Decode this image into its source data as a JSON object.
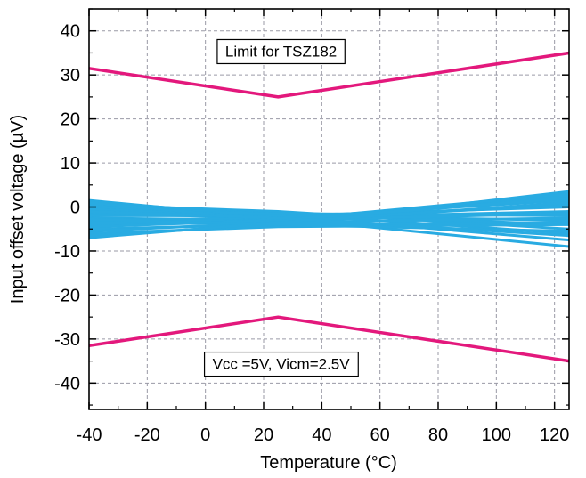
{
  "chart_data": {
    "type": "line",
    "title": "",
    "xlabel": "Temperature (°C)",
    "ylabel": "Input offset voltage (µV)",
    "xlim": [
      -40,
      125
    ],
    "ylim": [
      -46,
      45
    ],
    "x_ticks": [
      -40,
      -20,
      0,
      20,
      40,
      60,
      80,
      100,
      120
    ],
    "y_ticks": [
      40,
      30,
      20,
      10,
      0,
      -10,
      -20,
      -30,
      -40
    ],
    "grid": true,
    "legend": "none",
    "limit_color": "#e3187c",
    "sample_color": "#29abe2",
    "annotations": [
      {
        "text": "Limit for TSZ182",
        "x": 26,
        "y": 35.4
      },
      {
        "text": "Vcc =5V, Vicm=2.5V",
        "x": 26,
        "y": -35.6
      }
    ],
    "series": [
      {
        "role": "limit-upper",
        "x": [
          -40,
          25,
          125
        ],
        "y": [
          31.5,
          25,
          35
        ]
      },
      {
        "role": "limit-lower",
        "x": [
          -40,
          25,
          125
        ],
        "y": [
          -31.5,
          -25,
          -35
        ]
      },
      {
        "role": "sample",
        "x": [
          -40,
          25,
          125
        ],
        "y": [
          1.5,
          -2.5,
          -9
        ]
      },
      {
        "role": "sample",
        "x": [
          -40,
          25,
          125
        ],
        "y": [
          1.2,
          -2,
          -7.5
        ]
      },
      {
        "role": "sample",
        "x": [
          -40,
          25,
          125
        ],
        "y": [
          0.8,
          -1.5,
          -6
        ]
      },
      {
        "role": "sample",
        "x": [
          -40,
          25,
          125
        ],
        "y": [
          0.5,
          -1,
          -5
        ]
      },
      {
        "role": "sample",
        "x": [
          -40,
          25,
          125
        ],
        "y": [
          0,
          -1.5,
          -4
        ]
      },
      {
        "role": "sample",
        "x": [
          -40,
          25,
          125
        ],
        "y": [
          -0.5,
          -2,
          -3
        ]
      },
      {
        "role": "sample",
        "x": [
          -40,
          25,
          125
        ],
        "y": [
          -1,
          -1.5,
          -2
        ]
      },
      {
        "role": "sample",
        "x": [
          -40,
          25,
          125
        ],
        "y": [
          -1.5,
          -2.5,
          -1
        ]
      },
      {
        "role": "sample",
        "x": [
          -40,
          25,
          125
        ],
        "y": [
          -2,
          -2,
          0
        ]
      },
      {
        "role": "sample",
        "x": [
          -40,
          25,
          125
        ],
        "y": [
          -2.5,
          -3,
          0.5
        ]
      },
      {
        "role": "sample",
        "x": [
          -40,
          25,
          125
        ],
        "y": [
          -3,
          -2.5,
          1.5
        ]
      },
      {
        "role": "sample",
        "x": [
          -40,
          25,
          125
        ],
        "y": [
          -3.5,
          -3,
          -1.5
        ]
      },
      {
        "role": "sample",
        "x": [
          -40,
          25,
          125
        ],
        "y": [
          -4,
          -3.5,
          2.5
        ]
      },
      {
        "role": "sample",
        "x": [
          -40,
          25,
          125
        ],
        "y": [
          -4.5,
          -3,
          3
        ]
      },
      {
        "role": "sample",
        "x": [
          -40,
          25,
          125
        ],
        "y": [
          -5,
          -4,
          3.5
        ]
      },
      {
        "role": "sample",
        "x": [
          -40,
          25,
          125
        ],
        "y": [
          -5.5,
          -3.5,
          -2.5
        ]
      },
      {
        "role": "sample",
        "x": [
          -40,
          25,
          125
        ],
        "y": [
          -6,
          -4.5,
          -4
        ]
      },
      {
        "role": "sample",
        "x": [
          -40,
          25,
          125
        ],
        "y": [
          -6.5,
          -4,
          -5.5
        ]
      },
      {
        "role": "sample",
        "x": [
          -40,
          25,
          125
        ],
        "y": [
          -7,
          -3.5,
          1
        ]
      },
      {
        "role": "sample",
        "x": [
          -40,
          25,
          125
        ],
        "y": [
          1,
          -3,
          2
        ]
      },
      {
        "role": "sample",
        "x": [
          -40,
          25,
          125
        ],
        "y": [
          -1,
          -2.5,
          -6.5
        ]
      },
      {
        "role": "sample",
        "x": [
          -40,
          25,
          125
        ],
        "y": [
          -2.8,
          -4,
          -3.5
        ]
      }
    ]
  }
}
